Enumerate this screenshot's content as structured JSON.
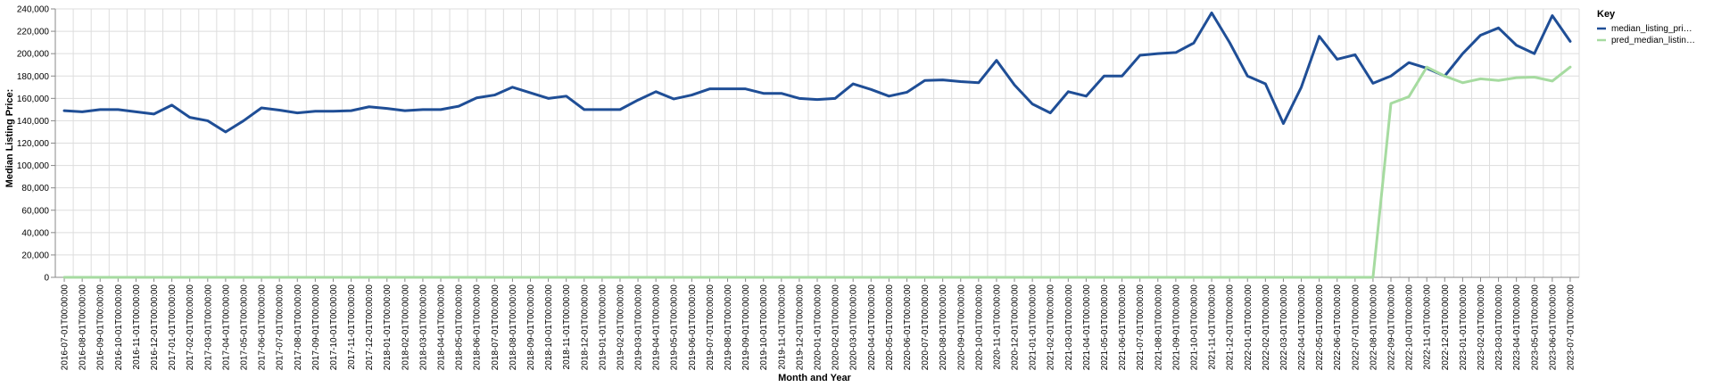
{
  "chart_data": {
    "type": "line",
    "xlabel": "Month and Year",
    "ylabel": "Median Listing Price:",
    "ylim": [
      0,
      240000
    ],
    "y_ticks": [
      "0",
      "20,000",
      "40,000",
      "60,000",
      "80,000",
      "100,000",
      "120,000",
      "140,000",
      "160,000",
      "180,000",
      "200,000",
      "220,000",
      "240,000"
    ],
    "y_tick_values": [
      0,
      20000,
      40000,
      60000,
      80000,
      100000,
      120000,
      140000,
      160000,
      180000,
      200000,
      220000,
      240000
    ],
    "grid": true,
    "legend": {
      "title": "Key",
      "placement": "right"
    },
    "x": [
      "2016-07-01T00:00:00",
      "2016-08-01T00:00:00",
      "2016-09-01T00:00:00",
      "2016-10-01T00:00:00",
      "2016-11-01T00:00:00",
      "2016-12-01T00:00:00",
      "2017-01-01T00:00:00",
      "2017-02-01T00:00:00",
      "2017-03-01T00:00:00",
      "2017-04-01T00:00:00",
      "2017-05-01T00:00:00",
      "2017-06-01T00:00:00",
      "2017-07-01T00:00:00",
      "2017-08-01T00:00:00",
      "2017-09-01T00:00:00",
      "2017-10-01T00:00:00",
      "2017-11-01T00:00:00",
      "2017-12-01T00:00:00",
      "2018-01-01T00:00:00",
      "2018-02-01T00:00:00",
      "2018-03-01T00:00:00",
      "2018-04-01T00:00:00",
      "2018-05-01T00:00:00",
      "2018-06-01T00:00:00",
      "2018-07-01T00:00:00",
      "2018-08-01T00:00:00",
      "2018-09-01T00:00:00",
      "2018-10-01T00:00:00",
      "2018-11-01T00:00:00",
      "2018-12-01T00:00:00",
      "2019-01-01T00:00:00",
      "2019-02-01T00:00:00",
      "2019-03-01T00:00:00",
      "2019-04-01T00:00:00",
      "2019-05-01T00:00:00",
      "2019-06-01T00:00:00",
      "2019-07-01T00:00:00",
      "2019-08-01T00:00:00",
      "2019-09-01T00:00:00",
      "2019-10-01T00:00:00",
      "2019-11-01T00:00:00",
      "2019-12-01T00:00:00",
      "2020-01-01T00:00:00",
      "2020-02-01T00:00:00",
      "2020-03-01T00:00:00",
      "2020-04-01T00:00:00",
      "2020-05-01T00:00:00",
      "2020-06-01T00:00:00",
      "2020-07-01T00:00:00",
      "2020-08-01T00:00:00",
      "2020-09-01T00:00:00",
      "2020-10-01T00:00:00",
      "2020-11-01T00:00:00",
      "2020-12-01T00:00:00",
      "2021-01-01T00:00:00",
      "2021-02-01T00:00:00",
      "2021-03-01T00:00:00",
      "2021-04-01T00:00:00",
      "2021-05-01T00:00:00",
      "2021-06-01T00:00:00",
      "2021-07-01T00:00:00",
      "2021-08-01T00:00:00",
      "2021-09-01T00:00:00",
      "2021-10-01T00:00:00",
      "2021-11-01T00:00:00",
      "2021-12-01T00:00:00",
      "2022-01-01T00:00:00",
      "2022-02-01T00:00:00",
      "2022-03-01T00:00:00",
      "2022-04-01T00:00:00",
      "2022-05-01T00:00:00",
      "2022-06-01T00:00:00",
      "2022-07-01T00:00:00",
      "2022-08-01T00:00:00",
      "2022-09-01T00:00:00",
      "2022-10-01T00:00:00",
      "2022-11-01T00:00:00",
      "2022-12-01T00:00:00",
      "2023-01-01T00:00:00",
      "2023-02-01T00:00:00",
      "2023-03-01T00:00:00",
      "2023-04-01T00:00:00",
      "2023-05-01T00:00:00",
      "2023-06-01T00:00:00",
      "2023-07-01T00:00:00"
    ],
    "series": [
      {
        "name": "median_listing_pri…",
        "color": "#1f4e96",
        "values": [
          149000,
          148000,
          150000,
          150000,
          148000,
          146000,
          154000,
          143000,
          140000,
          130000,
          140000,
          151500,
          149500,
          147000,
          148500,
          148500,
          149000,
          152500,
          151000,
          149000,
          150000,
          150000,
          153000,
          160500,
          163000,
          170000,
          165000,
          160000,
          162000,
          150000,
          150000,
          150000,
          158500,
          166000,
          159500,
          163000,
          168500,
          168500,
          168500,
          164500,
          164500,
          160000,
          159000,
          160000,
          173000,
          168000,
          162000,
          165500,
          176000,
          176500,
          175000,
          174000,
          194000,
          172000,
          155000,
          147000,
          166000,
          162000,
          180000,
          180000,
          198500,
          200000,
          201000,
          209500,
          236500,
          210000,
          180000,
          173000,
          137500,
          170000,
          215500,
          195000,
          199000,
          173500,
          180000,
          192000,
          187000,
          180000,
          200000,
          216500,
          223000,
          207500,
          200000,
          234000,
          211000
        ]
      },
      {
        "name": "pred_median_listin…",
        "color": "#a6dba0",
        "values": [
          0,
          0,
          0,
          0,
          0,
          0,
          0,
          0,
          0,
          0,
          0,
          0,
          0,
          0,
          0,
          0,
          0,
          0,
          0,
          0,
          0,
          0,
          0,
          0,
          0,
          0,
          0,
          0,
          0,
          0,
          0,
          0,
          0,
          0,
          0,
          0,
          0,
          0,
          0,
          0,
          0,
          0,
          0,
          0,
          0,
          0,
          0,
          0,
          0,
          0,
          0,
          0,
          0,
          0,
          0,
          0,
          0,
          0,
          0,
          0,
          0,
          0,
          0,
          0,
          0,
          0,
          0,
          0,
          0,
          0,
          0,
          0,
          0,
          0,
          155500,
          161500,
          188000,
          180000,
          174000,
          177500,
          176000,
          178500,
          179000,
          175500,
          188000
        ]
      }
    ]
  }
}
